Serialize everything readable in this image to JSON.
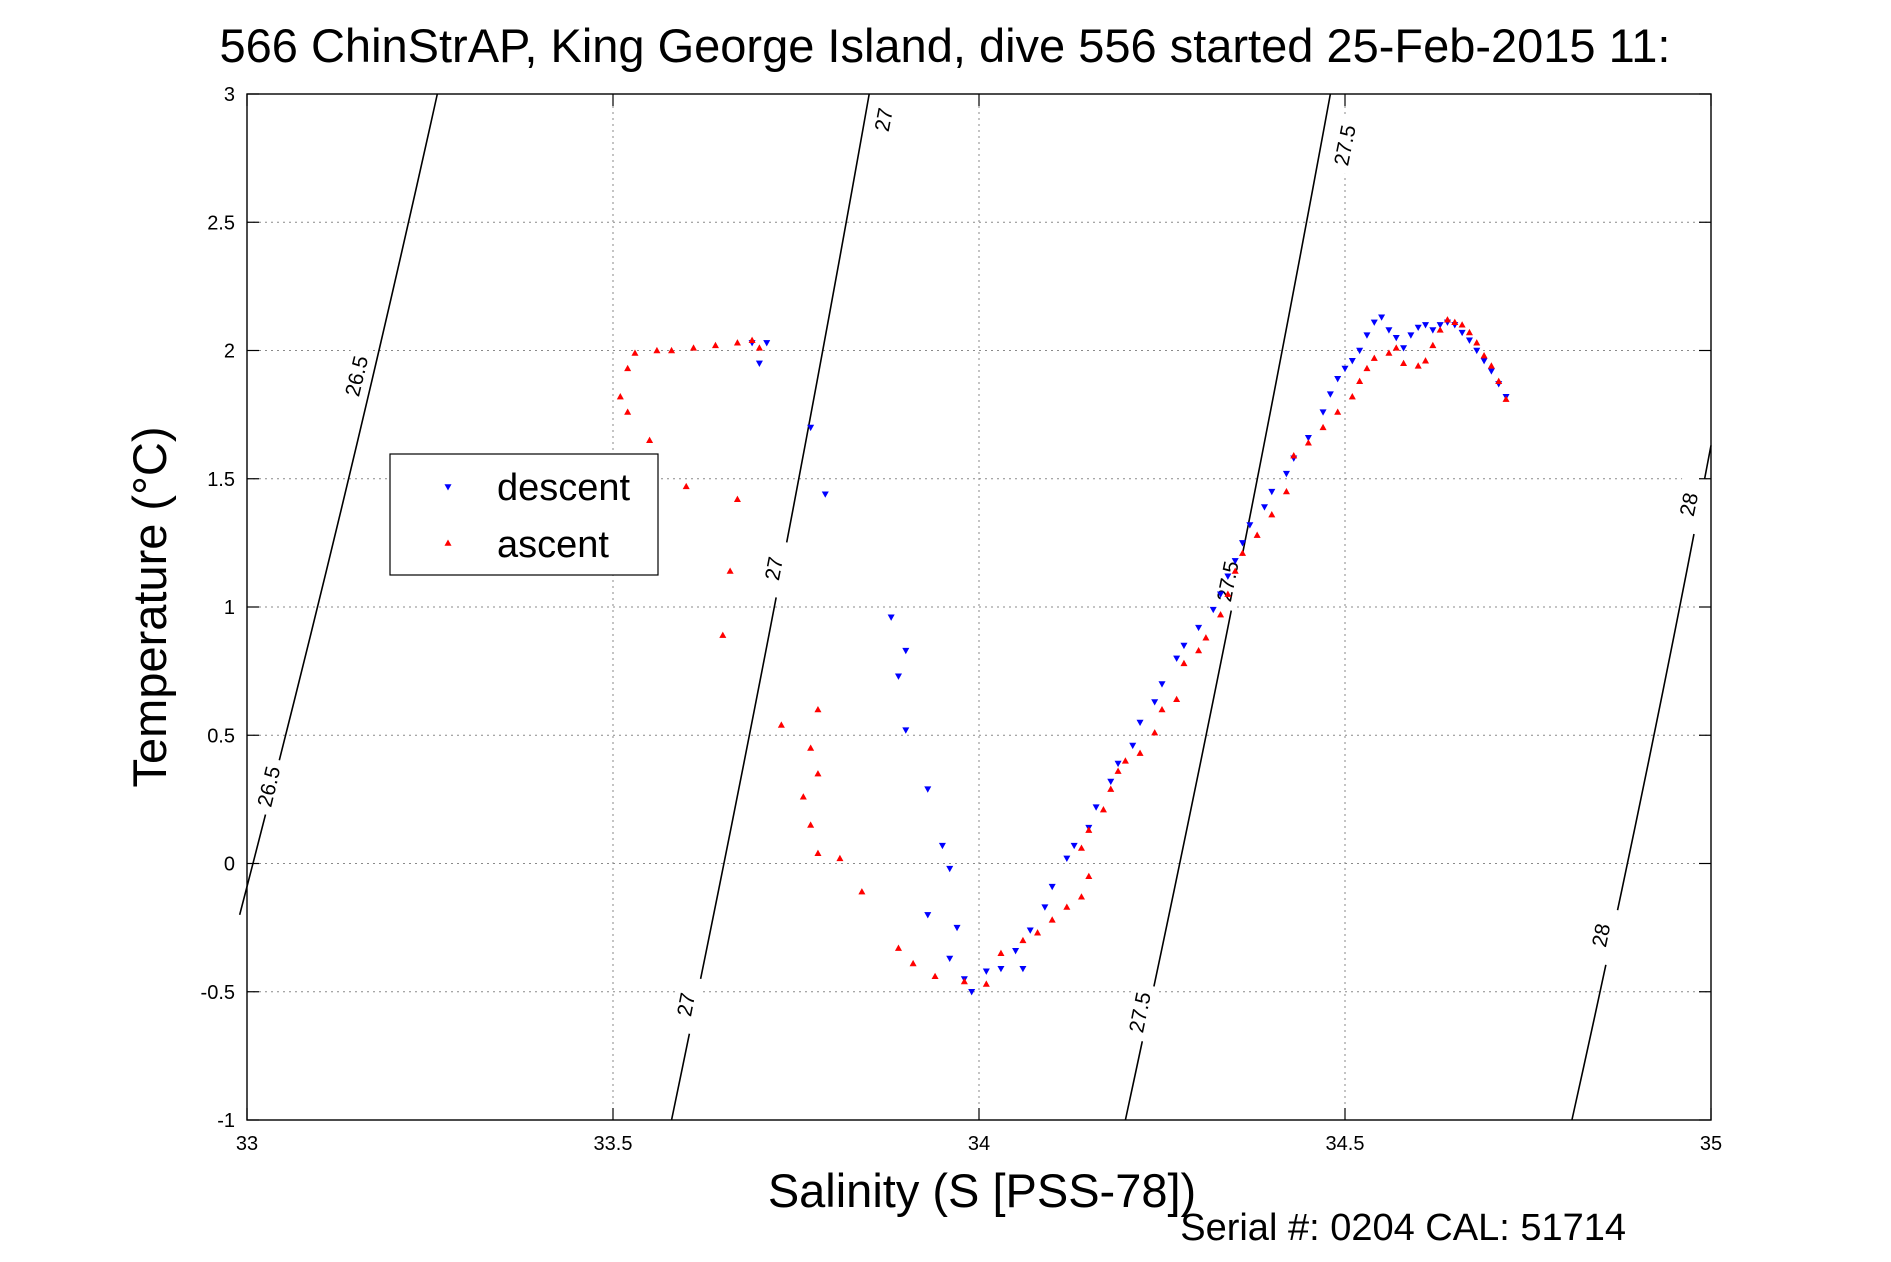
{
  "chart_data": {
    "type": "scatter",
    "title": "566 ChinStrAP, King George Island, dive 556 started 25-Feb-2015 11:",
    "xlabel": "Salinity (S [PSS-78])",
    "ylabel": "Temperature (°C)",
    "xlim": [
      33,
      35
    ],
    "ylim": [
      -1,
      3
    ],
    "xticks": [
      "33",
      "33.5",
      "34",
      "34.5",
      "35"
    ],
    "yticks": [
      "-1",
      "-0.5",
      "0",
      "0.5",
      "1",
      "1.5",
      "2",
      "2.5",
      "3"
    ],
    "grid": true,
    "legend": {
      "placement": "left-middle"
    },
    "footer": "Serial #: 0204  CAL: 51714",
    "colors": {
      "descent": "#0000ff",
      "ascent": "#ff0000"
    },
    "isopycnals": [
      {
        "label": "26.5",
        "points": [
          [
            32.99,
            -0.2
          ],
          [
            33.26,
            3.0
          ]
        ],
        "labels_at": [
          [
            33.03,
            0.3
          ],
          [
            33.15,
            1.9
          ]
        ]
      },
      {
        "label": "27",
        "points": [
          [
            33.58,
            -1.0
          ],
          [
            33.85,
            3.0
          ]
        ],
        "labels_at": [
          [
            33.6,
            -0.55
          ],
          [
            33.72,
            1.15
          ],
          [
            33.87,
            2.9
          ]
        ]
      },
      {
        "label": "27.5",
        "points": [
          [
            34.2,
            -1.0
          ],
          [
            34.48,
            3.0
          ]
        ],
        "labels_at": [
          [
            34.22,
            -0.58
          ],
          [
            34.34,
            1.1
          ],
          [
            34.5,
            2.8
          ]
        ]
      },
      {
        "label": "28",
        "points": [
          [
            34.81,
            -1.0
          ],
          [
            35.0,
            1.63
          ]
        ],
        "labels_at": [
          [
            34.85,
            -0.28
          ],
          [
            34.97,
            1.4
          ]
        ]
      }
    ],
    "series": [
      {
        "name": "descent",
        "marker": "triangle-down",
        "points": [
          [
            33.69,
            2.03
          ],
          [
            33.7,
            1.95
          ],
          [
            33.71,
            2.03
          ],
          [
            33.77,
            1.7
          ],
          [
            33.79,
            1.44
          ],
          [
            33.88,
            0.96
          ],
          [
            33.9,
            0.83
          ],
          [
            33.89,
            0.73
          ],
          [
            33.9,
            0.52
          ],
          [
            33.93,
            0.29
          ],
          [
            33.95,
            0.07
          ],
          [
            33.96,
            -0.02
          ],
          [
            33.93,
            -0.2
          ],
          [
            33.97,
            -0.25
          ],
          [
            33.96,
            -0.37
          ],
          [
            33.98,
            -0.45
          ],
          [
            33.99,
            -0.5
          ],
          [
            34.01,
            -0.42
          ],
          [
            34.03,
            -0.41
          ],
          [
            34.06,
            -0.41
          ],
          [
            34.05,
            -0.34
          ],
          [
            34.07,
            -0.26
          ],
          [
            34.09,
            -0.17
          ],
          [
            34.1,
            -0.09
          ],
          [
            34.12,
            0.02
          ],
          [
            34.13,
            0.07
          ],
          [
            34.15,
            0.14
          ],
          [
            34.16,
            0.22
          ],
          [
            34.18,
            0.32
          ],
          [
            34.19,
            0.39
          ],
          [
            34.21,
            0.46
          ],
          [
            34.22,
            0.55
          ],
          [
            34.24,
            0.63
          ],
          [
            34.25,
            0.7
          ],
          [
            34.27,
            0.8
          ],
          [
            34.28,
            0.85
          ],
          [
            34.3,
            0.92
          ],
          [
            34.32,
            0.99
          ],
          [
            34.33,
            1.05
          ],
          [
            34.34,
            1.12
          ],
          [
            34.35,
            1.18
          ],
          [
            34.36,
            1.25
          ],
          [
            34.37,
            1.32
          ],
          [
            34.39,
            1.39
          ],
          [
            34.4,
            1.45
          ],
          [
            34.42,
            1.52
          ],
          [
            34.43,
            1.58
          ],
          [
            34.45,
            1.66
          ],
          [
            34.47,
            1.76
          ],
          [
            34.48,
            1.83
          ],
          [
            34.49,
            1.89
          ],
          [
            34.5,
            1.93
          ],
          [
            34.51,
            1.96
          ],
          [
            34.52,
            2.0
          ],
          [
            34.53,
            2.06
          ],
          [
            34.54,
            2.11
          ],
          [
            34.55,
            2.13
          ],
          [
            34.56,
            2.08
          ],
          [
            34.57,
            2.05
          ],
          [
            34.58,
            2.01
          ],
          [
            34.59,
            2.06
          ],
          [
            34.6,
            2.09
          ],
          [
            34.61,
            2.1
          ],
          [
            34.62,
            2.08
          ],
          [
            34.63,
            2.1
          ],
          [
            34.64,
            2.11
          ],
          [
            34.65,
            2.1
          ],
          [
            34.66,
            2.07
          ],
          [
            34.67,
            2.04
          ],
          [
            34.68,
            2.0
          ],
          [
            34.69,
            1.96
          ],
          [
            34.7,
            1.92
          ],
          [
            34.71,
            1.87
          ],
          [
            34.72,
            1.82
          ]
        ]
      },
      {
        "name": "ascent",
        "marker": "triangle-up",
        "points": [
          [
            33.7,
            2.01
          ],
          [
            33.69,
            2.04
          ],
          [
            33.67,
            2.03
          ],
          [
            33.64,
            2.02
          ],
          [
            33.61,
            2.01
          ],
          [
            33.58,
            2.0
          ],
          [
            33.56,
            2.0
          ],
          [
            33.53,
            1.99
          ],
          [
            33.52,
            1.93
          ],
          [
            33.51,
            1.82
          ],
          [
            33.52,
            1.76
          ],
          [
            33.55,
            1.65
          ],
          [
            33.6,
            1.47
          ],
          [
            33.67,
            1.42
          ],
          [
            33.66,
            1.14
          ],
          [
            33.65,
            0.89
          ],
          [
            33.73,
            0.54
          ],
          [
            33.78,
            0.6
          ],
          [
            33.77,
            0.45
          ],
          [
            33.78,
            0.35
          ],
          [
            33.76,
            0.26
          ],
          [
            33.77,
            0.15
          ],
          [
            33.78,
            0.04
          ],
          [
            33.81,
            0.02
          ],
          [
            33.84,
            -0.11
          ],
          [
            33.89,
            -0.33
          ],
          [
            33.91,
            -0.39
          ],
          [
            33.94,
            -0.44
          ],
          [
            33.98,
            -0.46
          ],
          [
            34.01,
            -0.47
          ],
          [
            34.03,
            -0.35
          ],
          [
            34.06,
            -0.3
          ],
          [
            34.08,
            -0.27
          ],
          [
            34.1,
            -0.22
          ],
          [
            34.12,
            -0.17
          ],
          [
            34.14,
            -0.13
          ],
          [
            34.15,
            -0.05
          ],
          [
            34.14,
            0.06
          ],
          [
            34.15,
            0.13
          ],
          [
            34.17,
            0.21
          ],
          [
            34.18,
            0.29
          ],
          [
            34.19,
            0.36
          ],
          [
            34.2,
            0.4
          ],
          [
            34.22,
            0.43
          ],
          [
            34.24,
            0.51
          ],
          [
            34.25,
            0.6
          ],
          [
            34.27,
            0.64
          ],
          [
            34.28,
            0.78
          ],
          [
            34.3,
            0.83
          ],
          [
            34.31,
            0.88
          ],
          [
            34.33,
            0.97
          ],
          [
            34.34,
            1.05
          ],
          [
            34.35,
            1.14
          ],
          [
            34.36,
            1.21
          ],
          [
            34.38,
            1.28
          ],
          [
            34.4,
            1.36
          ],
          [
            34.42,
            1.45
          ],
          [
            34.43,
            1.59
          ],
          [
            34.45,
            1.64
          ],
          [
            34.47,
            1.7
          ],
          [
            34.49,
            1.76
          ],
          [
            34.51,
            1.82
          ],
          [
            34.52,
            1.88
          ],
          [
            34.53,
            1.93
          ],
          [
            34.54,
            1.97
          ],
          [
            34.56,
            1.99
          ],
          [
            34.57,
            2.01
          ],
          [
            34.58,
            1.95
          ],
          [
            34.6,
            1.94
          ],
          [
            34.61,
            1.96
          ],
          [
            34.62,
            2.02
          ],
          [
            34.63,
            2.08
          ],
          [
            34.64,
            2.12
          ],
          [
            34.65,
            2.11
          ],
          [
            34.66,
            2.1
          ],
          [
            34.67,
            2.07
          ],
          [
            34.68,
            2.03
          ],
          [
            34.69,
            1.98
          ],
          [
            34.7,
            1.94
          ],
          [
            34.71,
            1.88
          ],
          [
            34.72,
            1.81
          ]
        ]
      }
    ]
  }
}
